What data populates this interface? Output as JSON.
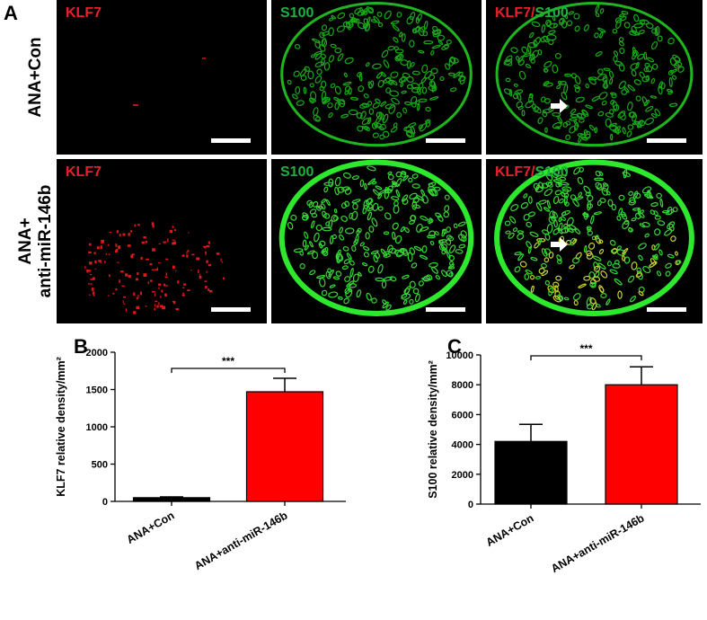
{
  "panel_a": {
    "label": "A",
    "row_labels": [
      [
        "ANA+Con"
      ],
      [
        "ANA+",
        "anti-miR-146b"
      ]
    ],
    "column_labels": [
      "KLF7",
      "S100"
    ],
    "overlay_label": [
      "KLF7",
      "/",
      "S100"
    ]
  },
  "chart_data": [
    {
      "type": "bar",
      "panel_label": "B",
      "ylabel": "KLF7 relative density/mm²",
      "categories": [
        "ANA+Con",
        "ANA+anti-miR-146b"
      ],
      "values": [
        50,
        1470
      ],
      "errors": [
        10,
        180
      ],
      "colors": [
        "#000000",
        "#ff0000"
      ],
      "ylim": [
        0,
        2000
      ],
      "yticks": [
        0,
        500,
        1000,
        1500,
        2000
      ],
      "annotation": "***"
    },
    {
      "type": "bar",
      "panel_label": "C",
      "ylabel": "S100 relative density/mm²",
      "categories": [
        "ANA+Con",
        "ANA+anti-miR-146b"
      ],
      "values": [
        4200,
        8000
      ],
      "errors": [
        1150,
        1200
      ],
      "colors": [
        "#000000",
        "#ff0000"
      ],
      "ylim": [
        0,
        10000
      ],
      "yticks": [
        0,
        2000,
        4000,
        6000,
        8000,
        10000
      ],
      "annotation": "***"
    }
  ]
}
